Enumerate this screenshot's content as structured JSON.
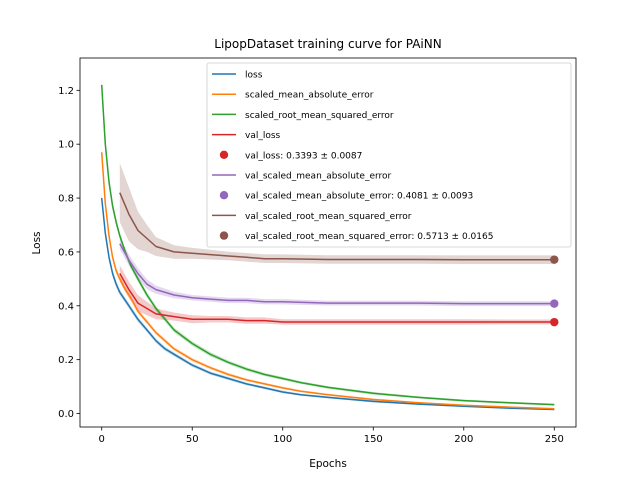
{
  "chart_data": {
    "type": "line",
    "title": "LipopDataset training curve for PAiNN",
    "xlabel": "Epochs",
    "ylabel": "Loss",
    "xlim": [
      -12,
      262
    ],
    "ylim": [
      -0.05,
      1.32
    ],
    "xticks": [
      0,
      50,
      100,
      150,
      200,
      250
    ],
    "yticks": [
      0.0,
      0.2,
      0.4,
      0.6,
      0.8,
      1.0,
      1.2
    ],
    "grid": false,
    "legend_position": "top-right",
    "series": [
      {
        "name": "loss",
        "kind": "line",
        "color": "#1f77b4",
        "x": [
          0,
          2,
          4,
          6,
          8,
          10,
          13,
          16,
          20,
          25,
          30,
          35,
          40,
          50,
          60,
          70,
          80,
          90,
          100,
          110,
          125,
          150,
          175,
          200,
          225,
          250
        ],
        "y": [
          0.8,
          0.67,
          0.58,
          0.52,
          0.48,
          0.45,
          0.42,
          0.39,
          0.35,
          0.31,
          0.27,
          0.24,
          0.22,
          0.18,
          0.15,
          0.13,
          0.11,
          0.095,
          0.08,
          0.07,
          0.06,
          0.045,
          0.035,
          0.027,
          0.02,
          0.015
        ],
        "band": [
          0.02,
          0.015,
          0.015,
          0.012,
          0.012,
          0.01,
          0.01,
          0.01,
          0.01,
          0.008,
          0.008,
          0.008,
          0.007,
          0.007,
          0.006,
          0.006,
          0.005,
          0.005,
          0.005,
          0.004,
          0.004,
          0.004,
          0.003,
          0.003,
          0.003,
          0.003
        ]
      },
      {
        "name": "scaled_mean_absolute_error",
        "kind": "line",
        "color": "#ff7f0e",
        "x": [
          0,
          2,
          4,
          6,
          8,
          10,
          13,
          16,
          20,
          25,
          30,
          35,
          40,
          50,
          60,
          70,
          80,
          90,
          100,
          110,
          125,
          150,
          175,
          200,
          225,
          250
        ],
        "y": [
          0.97,
          0.78,
          0.66,
          0.58,
          0.53,
          0.5,
          0.46,
          0.43,
          0.38,
          0.34,
          0.3,
          0.27,
          0.24,
          0.2,
          0.17,
          0.145,
          0.125,
          0.11,
          0.095,
          0.083,
          0.07,
          0.052,
          0.04,
          0.031,
          0.024,
          0.018
        ],
        "band": [
          0.02,
          0.015,
          0.015,
          0.012,
          0.012,
          0.01,
          0.01,
          0.01,
          0.01,
          0.008,
          0.008,
          0.008,
          0.007,
          0.007,
          0.006,
          0.006,
          0.005,
          0.005,
          0.005,
          0.004,
          0.004,
          0.004,
          0.003,
          0.003,
          0.003,
          0.003
        ]
      },
      {
        "name": "scaled_root_mean_squared_error",
        "kind": "line",
        "color": "#2ca02c",
        "x": [
          0,
          2,
          4,
          6,
          8,
          10,
          13,
          16,
          20,
          25,
          30,
          35,
          40,
          50,
          60,
          70,
          80,
          90,
          100,
          110,
          125,
          150,
          175,
          200,
          225,
          250
        ],
        "y": [
          1.22,
          1.0,
          0.86,
          0.77,
          0.71,
          0.66,
          0.6,
          0.55,
          0.5,
          0.44,
          0.39,
          0.35,
          0.31,
          0.26,
          0.22,
          0.19,
          0.165,
          0.145,
          0.13,
          0.115,
          0.097,
          0.075,
          0.06,
          0.048,
          0.04,
          0.033
        ],
        "band": [
          0.03,
          0.02,
          0.018,
          0.015,
          0.014,
          0.012,
          0.012,
          0.011,
          0.011,
          0.01,
          0.01,
          0.009,
          0.009,
          0.008,
          0.008,
          0.007,
          0.007,
          0.006,
          0.006,
          0.005,
          0.005,
          0.005,
          0.004,
          0.004,
          0.004,
          0.004
        ]
      },
      {
        "name": "val_loss",
        "kind": "line",
        "color": "#d62728",
        "x": [
          10,
          15,
          20,
          25,
          30,
          40,
          50,
          60,
          70,
          80,
          90,
          100,
          125,
          150,
          175,
          200,
          225,
          250
        ],
        "y": [
          0.52,
          0.46,
          0.41,
          0.39,
          0.37,
          0.36,
          0.35,
          0.35,
          0.35,
          0.345,
          0.345,
          0.34,
          0.34,
          0.34,
          0.34,
          0.34,
          0.34,
          0.34
        ],
        "band": [
          0.03,
          0.03,
          0.03,
          0.025,
          0.02,
          0.015,
          0.015,
          0.012,
          0.012,
          0.012,
          0.012,
          0.01,
          0.01,
          0.01,
          0.01,
          0.01,
          0.009,
          0.009
        ]
      },
      {
        "name": "val_loss: 0.3393 ± 0.0087",
        "kind": "marker",
        "color": "#d62728",
        "x": [
          250
        ],
        "y": [
          0.3393
        ]
      },
      {
        "name": "val_scaled_mean_absolute_error",
        "kind": "line",
        "color": "#9467bd",
        "x": [
          10,
          15,
          20,
          25,
          30,
          40,
          50,
          60,
          70,
          80,
          90,
          100,
          125,
          150,
          175,
          200,
          225,
          250
        ],
        "y": [
          0.63,
          0.57,
          0.52,
          0.48,
          0.46,
          0.44,
          0.43,
          0.425,
          0.42,
          0.42,
          0.415,
          0.415,
          0.41,
          0.41,
          0.41,
          0.408,
          0.408,
          0.408
        ],
        "band": [
          0.02,
          0.02,
          0.02,
          0.018,
          0.015,
          0.012,
          0.01,
          0.01,
          0.01,
          0.01,
          0.01,
          0.01,
          0.009,
          0.009,
          0.009,
          0.009,
          0.009,
          0.009
        ]
      },
      {
        "name": "val_scaled_mean_absolute_error: 0.4081 ± 0.0093",
        "kind": "marker",
        "color": "#9467bd",
        "x": [
          250
        ],
        "y": [
          0.4081
        ]
      },
      {
        "name": "val_scaled_root_mean_squared_error",
        "kind": "line",
        "color": "#8c564b",
        "x": [
          10,
          15,
          20,
          25,
          30,
          40,
          50,
          60,
          70,
          80,
          90,
          100,
          125,
          150,
          175,
          200,
          225,
          250
        ],
        "y": [
          0.82,
          0.74,
          0.68,
          0.65,
          0.62,
          0.6,
          0.595,
          0.59,
          0.585,
          0.58,
          0.575,
          0.575,
          0.572,
          0.572,
          0.572,
          0.571,
          0.571,
          0.571
        ],
        "band": [
          0.11,
          0.1,
          0.07,
          0.05,
          0.035,
          0.025,
          0.02,
          0.018,
          0.016,
          0.016,
          0.016,
          0.016,
          0.016,
          0.016,
          0.016,
          0.016,
          0.016,
          0.016
        ]
      },
      {
        "name": "val_scaled_root_mean_squared_error: 0.5713 ± 0.0165",
        "kind": "marker",
        "color": "#8c564b",
        "x": [
          250
        ],
        "y": [
          0.5713
        ]
      }
    ]
  }
}
